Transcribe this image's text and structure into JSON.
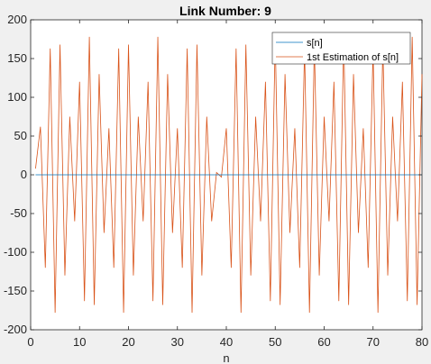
{
  "chart_data": {
    "type": "line",
    "title": "Link Number: 9",
    "xlabel": "n",
    "ylabel": "",
    "xlim": [
      0,
      80
    ],
    "ylim": [
      -200,
      200
    ],
    "xticks": [
      "0",
      "10",
      "20",
      "30",
      "40",
      "50",
      "60",
      "70",
      "80"
    ],
    "yticks": [
      "200",
      "150",
      "100",
      "50",
      "0",
      "-50",
      "-100",
      "-150",
      "-200"
    ],
    "grid": false,
    "legend_position": "top-right",
    "series": [
      {
        "name": "s[n]",
        "color": "#0072bd",
        "x": [
          1,
          80
        ],
        "y": [
          0,
          0
        ]
      },
      {
        "name": "1st Estimation of s[n]",
        "color": "#d95319",
        "x": [
          1,
          2,
          3,
          4,
          5,
          6,
          7,
          8,
          9,
          10,
          11,
          12,
          13,
          14,
          15,
          16,
          17,
          18,
          19,
          20,
          21,
          22,
          23,
          24,
          25,
          26,
          27,
          28,
          29,
          30,
          31,
          32,
          33,
          34,
          35,
          36,
          37,
          38,
          39,
          40,
          41,
          42,
          43,
          44,
          45,
          46,
          47,
          48,
          49,
          50,
          51,
          52,
          53,
          54,
          55,
          56,
          57,
          58,
          59,
          60,
          61,
          62,
          63,
          64,
          65,
          66,
          67,
          68,
          69,
          70,
          71,
          72,
          73,
          74,
          75,
          76,
          77,
          78,
          79,
          80
        ],
        "y": [
          8,
          62,
          -120,
          163,
          -178,
          168,
          -130,
          75,
          -60,
          120,
          -163,
          178,
          -168,
          130,
          -75,
          60,
          -120,
          163,
          -178,
          168,
          -130,
          75,
          -60,
          120,
          -163,
          178,
          -168,
          130,
          -75,
          60,
          -120,
          163,
          -178,
          168,
          -130,
          75,
          -60,
          3,
          -3,
          60,
          -120,
          163,
          -178,
          168,
          -130,
          75,
          -60,
          120,
          -163,
          178,
          -168,
          130,
          -75,
          60,
          -120,
          163,
          -178,
          168,
          -130,
          75,
          -60,
          120,
          -163,
          178,
          -168,
          130,
          -75,
          60,
          -120,
          163,
          -178,
          168,
          -130,
          75,
          -60,
          120,
          -163,
          178,
          -168,
          130
        ]
      }
    ]
  }
}
